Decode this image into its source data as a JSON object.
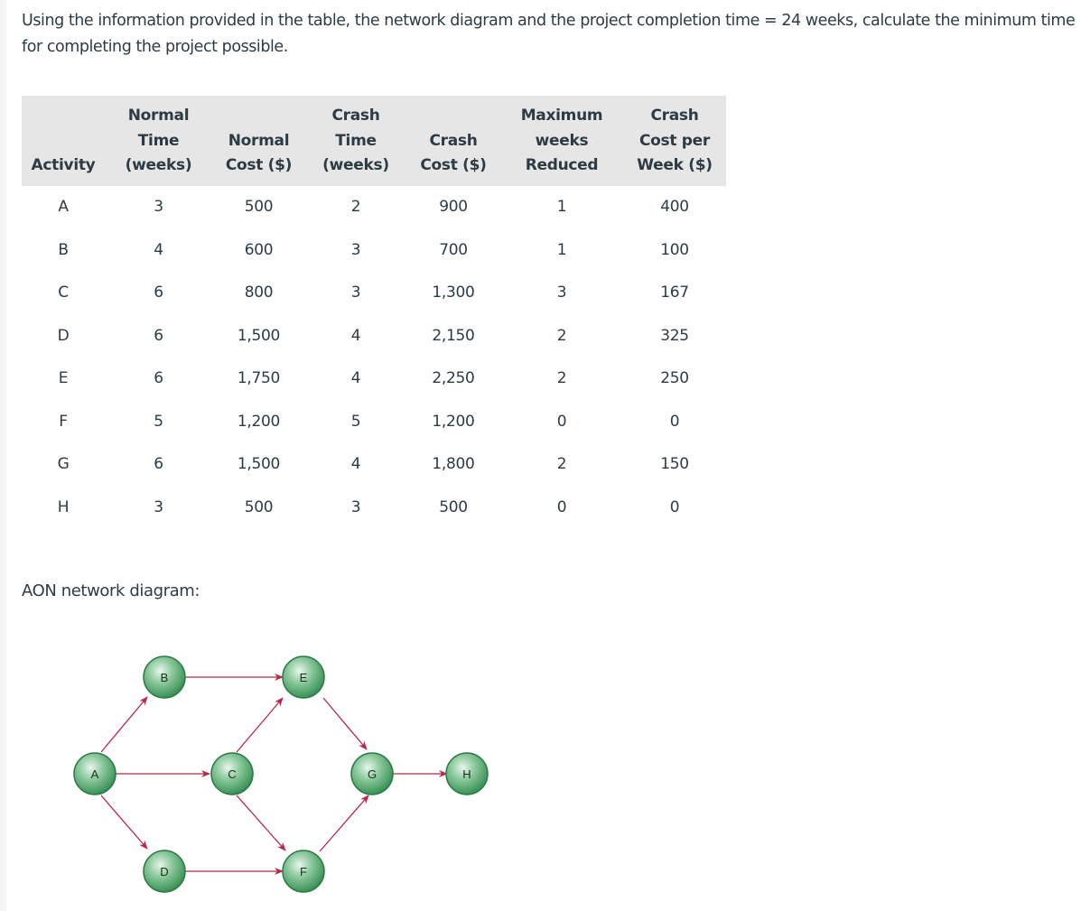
{
  "question": "Using the information provided in the table, the network diagram and the project completion time = 24 weeks, calculate the minimum time for completing the project possible.",
  "table": {
    "headers": [
      [
        "",
        "",
        "Activity"
      ],
      [
        "Normal",
        "Time",
        "(weeks)"
      ],
      [
        "",
        "Normal",
        "Cost ($)"
      ],
      [
        "Crash",
        "Time",
        "(weeks)"
      ],
      [
        "",
        "Crash",
        "Cost ($)"
      ],
      [
        "Maximum",
        "weeks",
        "Reduced"
      ],
      [
        "Crash",
        "Cost per",
        "Week ($)"
      ]
    ],
    "rows": [
      [
        "A",
        "3",
        "500",
        "2",
        "900",
        "1",
        "400"
      ],
      [
        "B",
        "4",
        "600",
        "3",
        "700",
        "1",
        "100"
      ],
      [
        "C",
        "6",
        "800",
        "3",
        "1,300",
        "3",
        "167"
      ],
      [
        "D",
        "6",
        "1,500",
        "4",
        "2,150",
        "2",
        "325"
      ],
      [
        "E",
        "6",
        "1,750",
        "4",
        "2,250",
        "2",
        "250"
      ],
      [
        "F",
        "5",
        "1,200",
        "5",
        "1,200",
        "0",
        "0"
      ],
      [
        "G",
        "6",
        "1,500",
        "4",
        "1,800",
        "2",
        "150"
      ],
      [
        "H",
        "3",
        "500",
        "3",
        "500",
        "0",
        "0"
      ]
    ]
  },
  "diagram": {
    "label": "AON network diagram:",
    "nodes": {
      "A": "A",
      "B": "B",
      "C": "C",
      "D": "D",
      "E": "E",
      "F": "F",
      "G": "G",
      "H": "H"
    },
    "edges": [
      "A→B",
      "A→C",
      "A→D",
      "B→E",
      "C→E",
      "C→F",
      "D→F",
      "E→G",
      "F→G",
      "G→H"
    ],
    "colors": {
      "node": "#3a9a5a",
      "arrow": "#b5284a"
    }
  }
}
